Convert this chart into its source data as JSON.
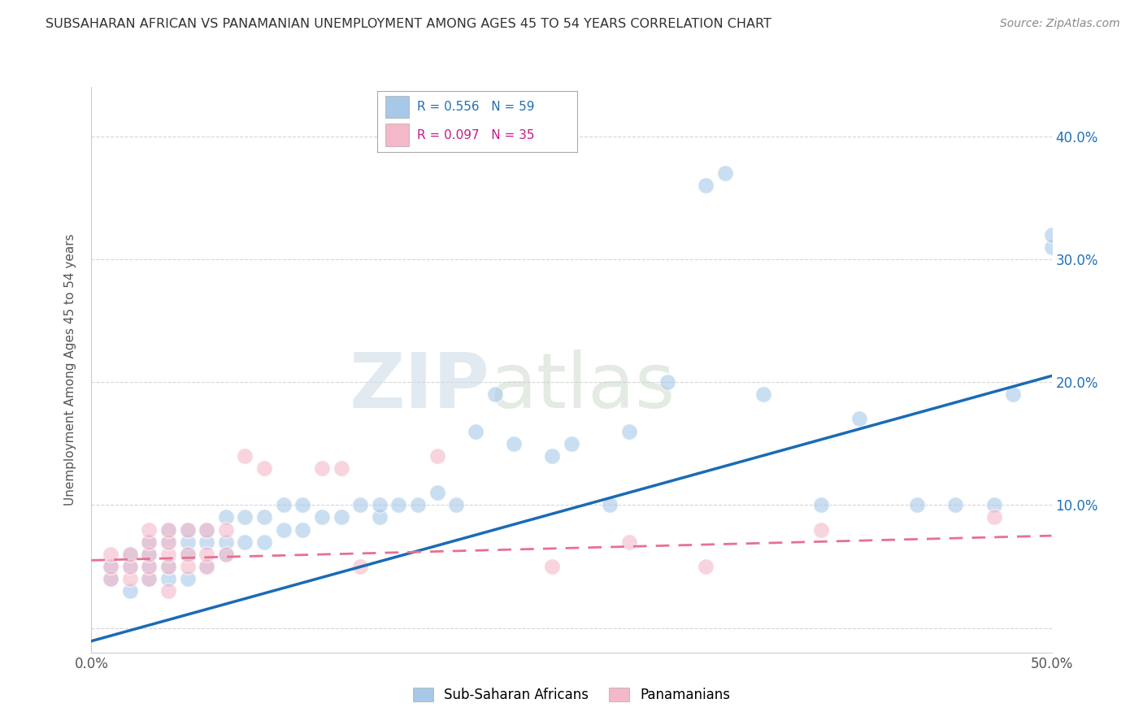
{
  "title": "SUBSAHARAN AFRICAN VS PANAMANIAN UNEMPLOYMENT AMONG AGES 45 TO 54 YEARS CORRELATION CHART",
  "source": "Source: ZipAtlas.com",
  "ylabel": "Unemployment Among Ages 45 to 54 years",
  "xlim": [
    0.0,
    0.5
  ],
  "ylim": [
    -0.02,
    0.44
  ],
  "xticks": [
    0.0,
    0.1,
    0.2,
    0.3,
    0.4,
    0.5
  ],
  "yticks": [
    0.0,
    0.1,
    0.2,
    0.3,
    0.4
  ],
  "ytick_right_labels": [
    "",
    "10.0%",
    "20.0%",
    "30.0%",
    "40.0%"
  ],
  "xtick_labels": [
    "0.0%",
    "",
    "",
    "",
    "",
    "50.0%"
  ],
  "legend_r1": "R = 0.556",
  "legend_n1": "N = 59",
  "legend_r2": "R = 0.097",
  "legend_n2": "N = 35",
  "blue_color": "#a8c8e8",
  "pink_color": "#f4b8c8",
  "blue_line_color": "#1a6bb5",
  "pink_line_color": "#e87090",
  "watermark_zip": "ZIP",
  "watermark_atlas": "atlas",
  "blue_scatter_x": [
    0.01,
    0.01,
    0.02,
    0.02,
    0.02,
    0.03,
    0.03,
    0.03,
    0.03,
    0.04,
    0.04,
    0.04,
    0.04,
    0.05,
    0.05,
    0.05,
    0.05,
    0.06,
    0.06,
    0.06,
    0.07,
    0.07,
    0.07,
    0.08,
    0.08,
    0.09,
    0.09,
    0.1,
    0.1,
    0.11,
    0.11,
    0.12,
    0.13,
    0.14,
    0.15,
    0.15,
    0.16,
    0.17,
    0.18,
    0.19,
    0.2,
    0.21,
    0.22,
    0.24,
    0.25,
    0.27,
    0.28,
    0.3,
    0.32,
    0.33,
    0.35,
    0.38,
    0.4,
    0.43,
    0.45,
    0.47,
    0.48,
    0.5,
    0.5
  ],
  "blue_scatter_y": [
    0.04,
    0.05,
    0.03,
    0.05,
    0.06,
    0.04,
    0.05,
    0.06,
    0.07,
    0.04,
    0.05,
    0.07,
    0.08,
    0.04,
    0.06,
    0.07,
    0.08,
    0.05,
    0.07,
    0.08,
    0.06,
    0.07,
    0.09,
    0.07,
    0.09,
    0.07,
    0.09,
    0.08,
    0.1,
    0.08,
    0.1,
    0.09,
    0.09,
    0.1,
    0.09,
    0.1,
    0.1,
    0.1,
    0.11,
    0.1,
    0.16,
    0.19,
    0.15,
    0.14,
    0.15,
    0.1,
    0.16,
    0.2,
    0.36,
    0.37,
    0.19,
    0.1,
    0.17,
    0.1,
    0.1,
    0.1,
    0.19,
    0.31,
    0.32
  ],
  "pink_scatter_x": [
    0.01,
    0.01,
    0.01,
    0.02,
    0.02,
    0.02,
    0.03,
    0.03,
    0.03,
    0.03,
    0.03,
    0.04,
    0.04,
    0.04,
    0.04,
    0.04,
    0.05,
    0.05,
    0.05,
    0.06,
    0.06,
    0.06,
    0.07,
    0.07,
    0.08,
    0.09,
    0.12,
    0.13,
    0.14,
    0.18,
    0.24,
    0.28,
    0.32,
    0.38,
    0.47
  ],
  "pink_scatter_y": [
    0.04,
    0.05,
    0.06,
    0.04,
    0.05,
    0.06,
    0.04,
    0.05,
    0.06,
    0.07,
    0.08,
    0.03,
    0.05,
    0.06,
    0.07,
    0.08,
    0.05,
    0.06,
    0.08,
    0.05,
    0.06,
    0.08,
    0.06,
    0.08,
    0.14,
    0.13,
    0.13,
    0.13,
    0.05,
    0.14,
    0.05,
    0.07,
    0.05,
    0.08,
    0.09
  ],
  "blue_line_x": [
    -0.01,
    0.5
  ],
  "blue_line_y": [
    -0.015,
    0.205
  ],
  "pink_line_x": [
    0.0,
    0.5
  ],
  "pink_line_y": [
    0.055,
    0.075
  ]
}
